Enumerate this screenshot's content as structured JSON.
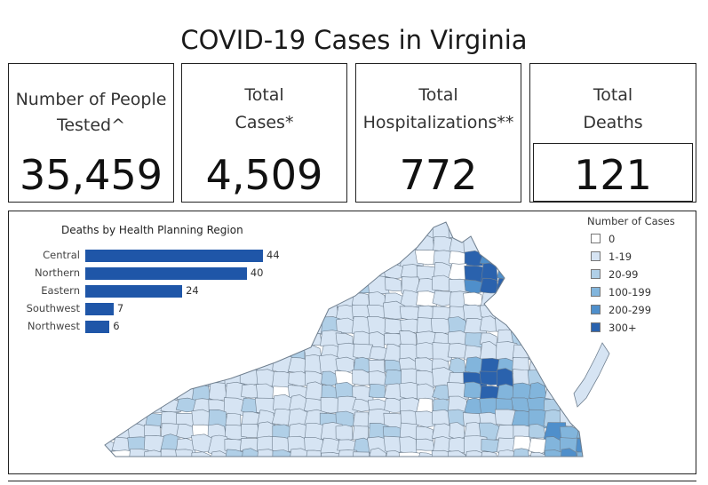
{
  "title": "COVID-19 Cases in Virginia",
  "kpis": {
    "tested": {
      "label_line1": "Number of People",
      "label_line2": "Tested^",
      "value": "35,459"
    },
    "cases": {
      "label_line1": "Total",
      "label_line2": "Cases*",
      "value": "4,509"
    },
    "hospitalizations": {
      "label_line1": "Total",
      "label_line2": "Hospitalizations**",
      "value": "772"
    },
    "deaths": {
      "label_line1": "Total",
      "label_line2": "Deaths",
      "value": "121"
    }
  },
  "chart_data": {
    "type": "bar",
    "title": "Deaths by Health Planning Region",
    "categories": [
      "Central",
      "Northern",
      "Eastern",
      "Southwest",
      "Northwest"
    ],
    "values": [
      44,
      40,
      24,
      7,
      6
    ],
    "bar_color": "#1f56a8"
  },
  "legend": {
    "title": "Number of Cases",
    "items": [
      {
        "label": "0",
        "color": "#ffffff"
      },
      {
        "label": "1-19",
        "color": "#d6e4f3"
      },
      {
        "label": "20-99",
        "color": "#b0cfe7"
      },
      {
        "label": "100-199",
        "color": "#82b5dc"
      },
      {
        "label": "200-299",
        "color": "#4f8fcb"
      },
      {
        "label": "300+",
        "color": "#2a62ad"
      }
    ]
  },
  "map": {
    "name": "virginia-county-map",
    "default_fill": "#d6e4f3"
  }
}
